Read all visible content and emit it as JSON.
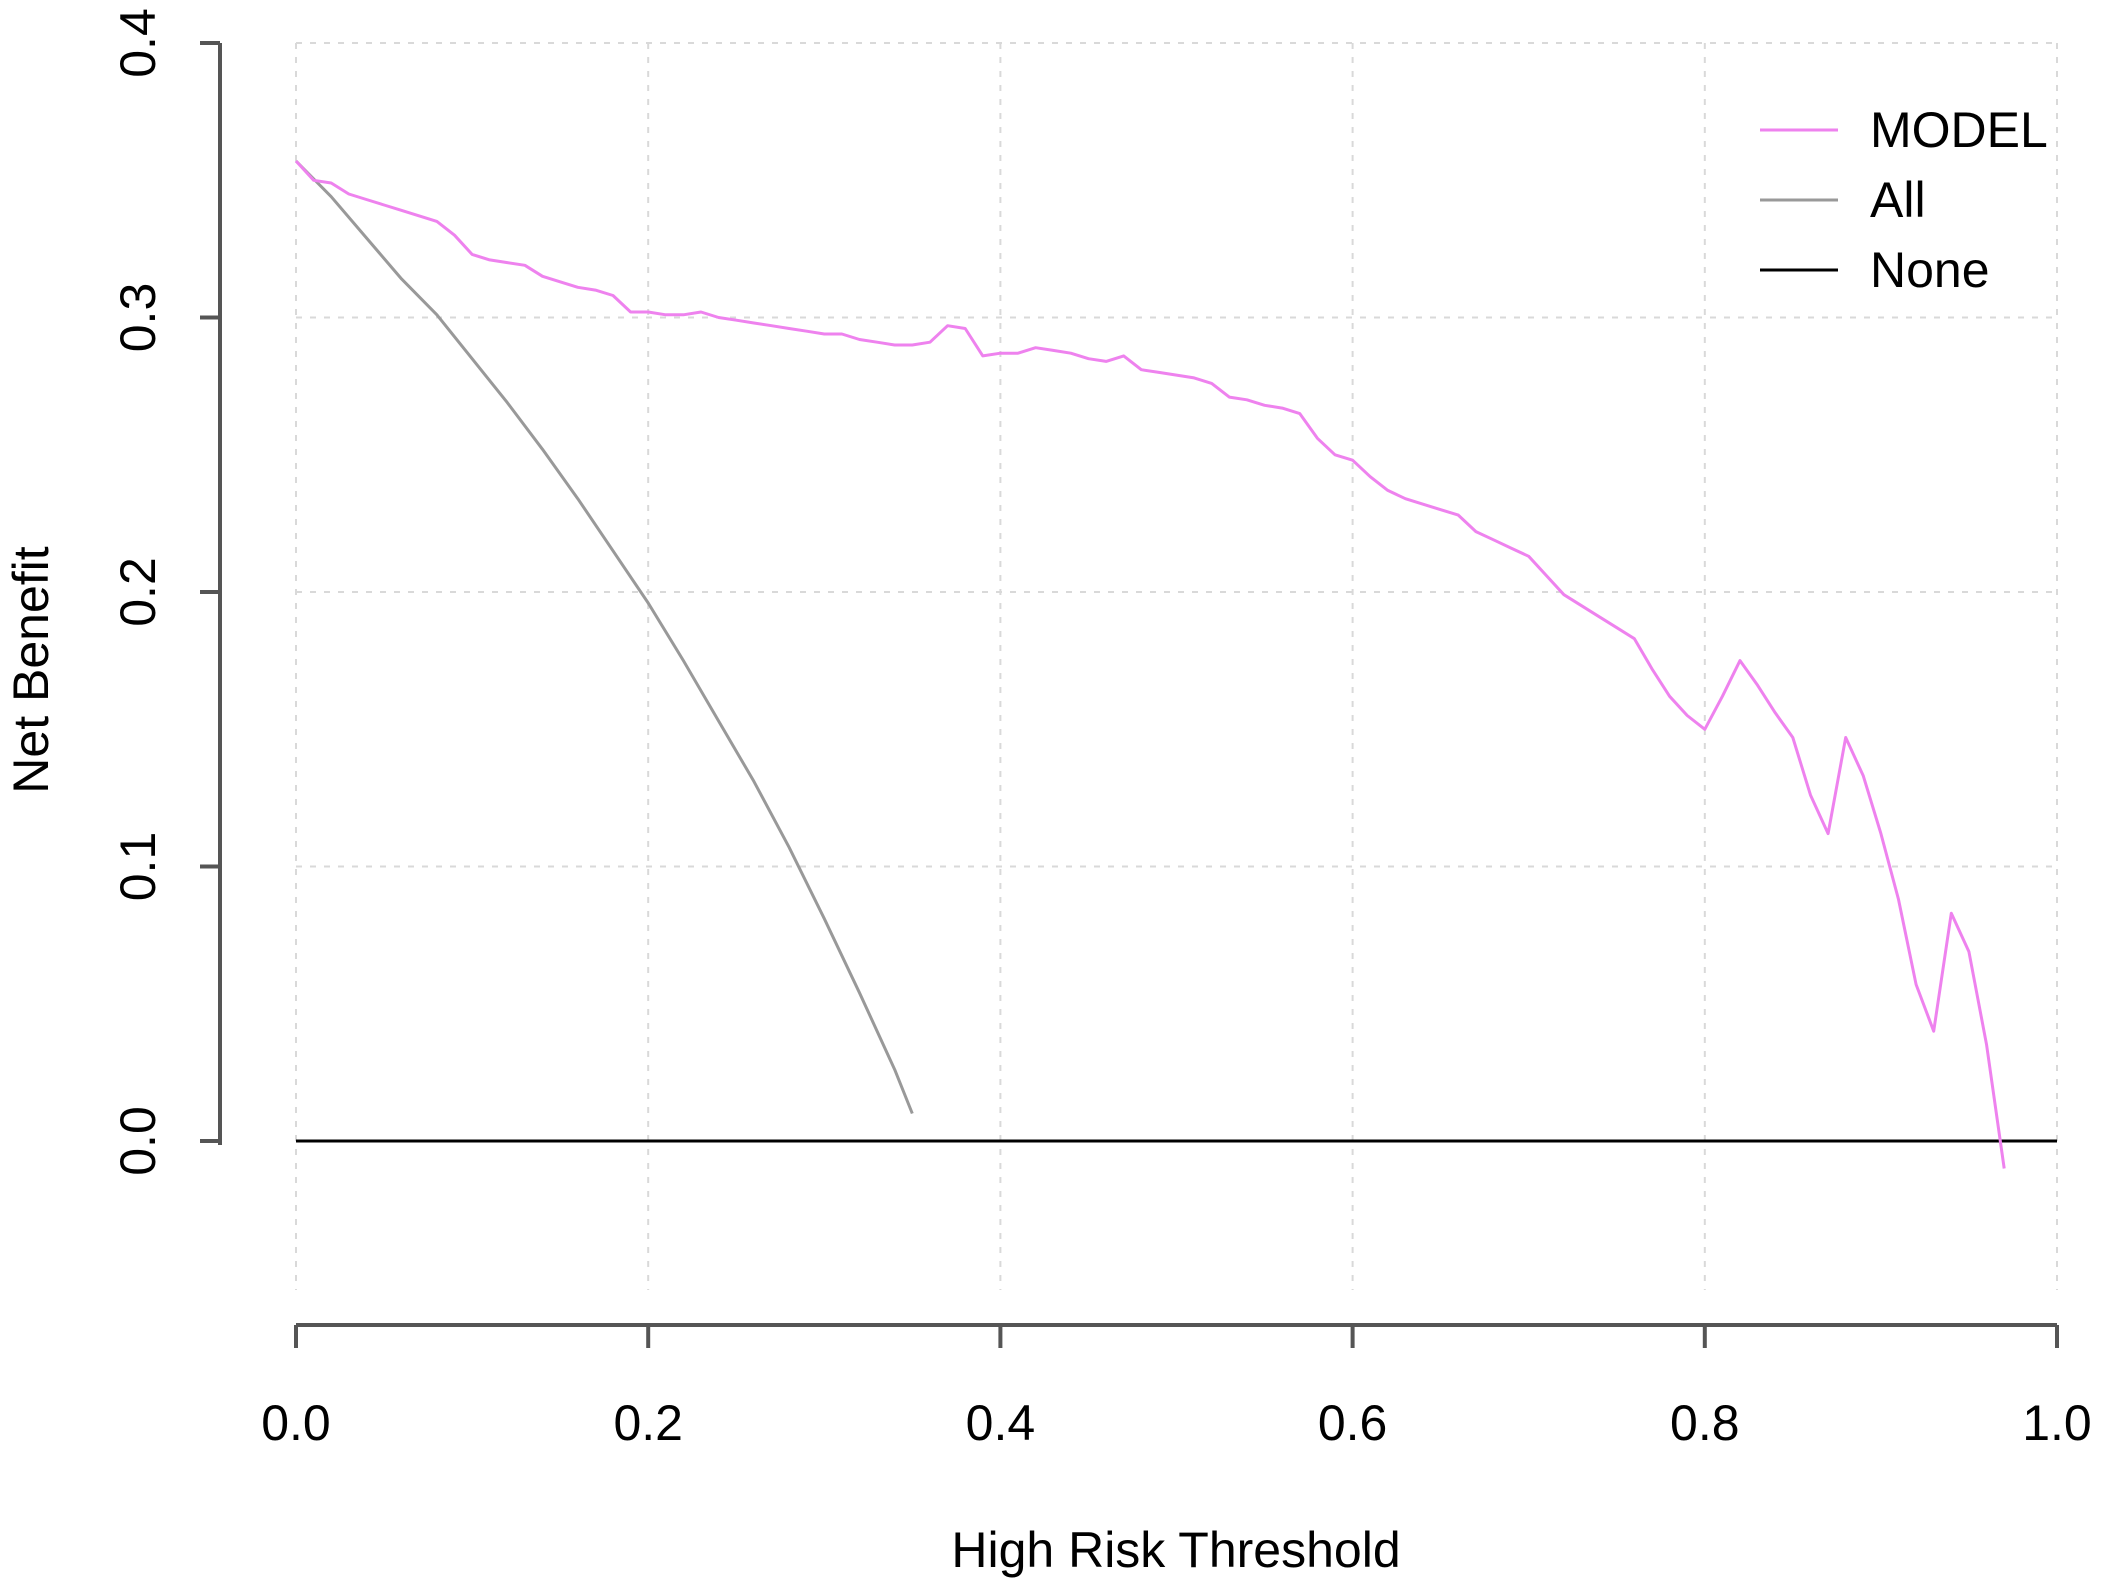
{
  "chart_data": {
    "type": "line",
    "title": "",
    "xlabel": "High Risk Threshold",
    "ylabel": "Net Benefit",
    "xlim": [
      0,
      1
    ],
    "ylim": [
      -0.068,
      0.4
    ],
    "xticks": [
      0.0,
      0.2,
      0.4,
      0.6,
      0.8,
      1.0
    ],
    "xtick_labels": [
      "0.0",
      "0.2",
      "0.4",
      "0.6",
      "0.8",
      "1.0"
    ],
    "yticks": [
      0.0,
      0.1,
      0.2,
      0.3,
      0.4
    ],
    "ytick_labels": [
      "0.0",
      "0.1",
      "0.2",
      "0.3",
      "0.4"
    ],
    "grid": true,
    "legend_position": "top-right",
    "series": [
      {
        "name": "MODEL",
        "color": "#ee82ee",
        "x": [
          0.0,
          0.01,
          0.02,
          0.03,
          0.04,
          0.05,
          0.06,
          0.07,
          0.08,
          0.09,
          0.1,
          0.11,
          0.12,
          0.13,
          0.14,
          0.15,
          0.16,
          0.17,
          0.18,
          0.19,
          0.2,
          0.21,
          0.22,
          0.23,
          0.24,
          0.25,
          0.26,
          0.27,
          0.28,
          0.29,
          0.3,
          0.31,
          0.32,
          0.33,
          0.34,
          0.35,
          0.36,
          0.37,
          0.38,
          0.39,
          0.4,
          0.41,
          0.42,
          0.43,
          0.44,
          0.45,
          0.46,
          0.47,
          0.48,
          0.49,
          0.5,
          0.51,
          0.52,
          0.53,
          0.54,
          0.55,
          0.56,
          0.57,
          0.58,
          0.59,
          0.6,
          0.61,
          0.62,
          0.63,
          0.64,
          0.65,
          0.66,
          0.67,
          0.68,
          0.69,
          0.7,
          0.71,
          0.72,
          0.73,
          0.74,
          0.75,
          0.76,
          0.77,
          0.78,
          0.79,
          0.8,
          0.81,
          0.82,
          0.83,
          0.84,
          0.85,
          0.86,
          0.87,
          0.88,
          0.89,
          0.9,
          0.91,
          0.92,
          0.93,
          0.94,
          0.95,
          0.96,
          0.97
        ],
        "y": [
          0.357,
          0.35,
          0.349,
          0.345,
          0.343,
          0.341,
          0.339,
          0.337,
          0.335,
          0.33,
          0.323,
          0.321,
          0.32,
          0.319,
          0.315,
          0.313,
          0.311,
          0.31,
          0.308,
          0.302,
          0.302,
          0.301,
          0.301,
          0.302,
          0.3,
          0.299,
          0.298,
          0.297,
          0.296,
          0.295,
          0.294,
          0.294,
          0.292,
          0.291,
          0.29,
          0.29,
          0.291,
          0.297,
          0.296,
          0.286,
          0.287,
          0.287,
          0.289,
          0.288,
          0.287,
          0.285,
          0.284,
          0.286,
          0.281,
          0.28,
          0.279,
          0.278,
          0.276,
          0.271,
          0.27,
          0.268,
          0.267,
          0.265,
          0.256,
          0.25,
          0.248,
          0.242,
          0.237,
          0.234,
          0.232,
          0.23,
          0.228,
          0.222,
          0.219,
          0.216,
          0.213,
          0.206,
          0.199,
          0.195,
          0.191,
          0.187,
          0.183,
          0.172,
          0.162,
          0.155,
          0.15,
          0.162,
          0.175,
          0.166,
          0.156,
          0.147,
          0.126,
          0.112,
          0.147,
          0.133,
          0.112,
          0.088,
          0.057,
          0.04,
          0.083,
          0.069,
          0.035,
          -0.01
        ]
      },
      {
        "name": "All",
        "color": "#999999",
        "x": [
          0.0,
          0.02,
          0.04,
          0.06,
          0.08,
          0.1,
          0.12,
          0.14,
          0.16,
          0.18,
          0.2,
          0.22,
          0.24,
          0.26,
          0.28,
          0.3,
          0.32,
          0.34,
          0.35
        ],
        "y": [
          0.357,
          0.344,
          0.329,
          0.314,
          0.301,
          0.285,
          0.269,
          0.252,
          0.234,
          0.215,
          0.196,
          0.175,
          0.153,
          0.131,
          0.107,
          0.081,
          0.054,
          0.026,
          0.01
        ]
      },
      {
        "name": "None",
        "color": "#000000",
        "x": [
          0.0,
          1.0
        ],
        "y": [
          0.0,
          0.0
        ]
      }
    ]
  }
}
